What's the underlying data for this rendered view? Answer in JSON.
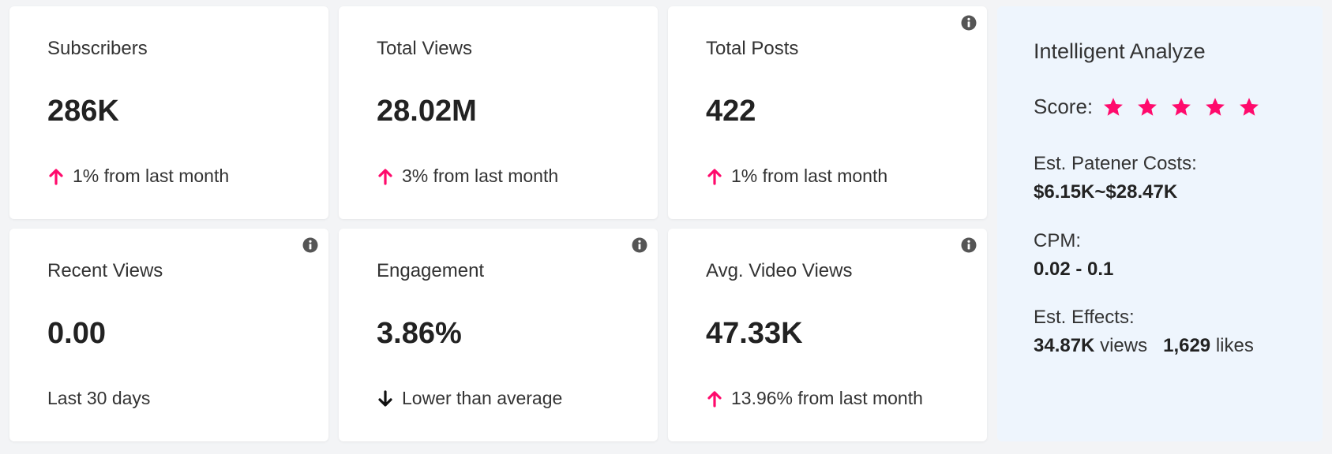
{
  "colors": {
    "accent": "#ff0a6c",
    "down": "#111111",
    "info": "#555555",
    "panel_bg": "#eef5fd"
  },
  "cards": [
    {
      "title": "Subscribers",
      "value": "286K",
      "sub": "1% from last month",
      "trend": "up",
      "info": false
    },
    {
      "title": "Total Views",
      "value": "28.02M",
      "sub": "3% from last month",
      "trend": "up",
      "info": false
    },
    {
      "title": "Total Posts",
      "value": "422",
      "sub": "1% from last month",
      "trend": "up",
      "info": true
    },
    {
      "title": "Recent Views",
      "value": "0.00",
      "sub": "Last 30 days",
      "trend": "none",
      "info": true
    },
    {
      "title": "Engagement",
      "value": "3.86%",
      "sub": "Lower than average",
      "trend": "down",
      "info": true
    },
    {
      "title": "Avg. Video Views",
      "value": "47.33K",
      "sub": "13.96% from last month",
      "trend": "up",
      "info": true
    }
  ],
  "analyze": {
    "title": "Intelligent Analyze",
    "score_label": "Score:",
    "score_stars": 5,
    "costs_label": "Est. Patener Costs:",
    "costs_value": "$6.15K~$28.47K",
    "cpm_label": "CPM:",
    "cpm_value": "0.02 - 0.1",
    "effects_label": "Est. Effects:",
    "effects_views": "34.87K",
    "effects_views_unit": "views",
    "effects_likes": "1,629",
    "effects_likes_unit": "likes"
  }
}
